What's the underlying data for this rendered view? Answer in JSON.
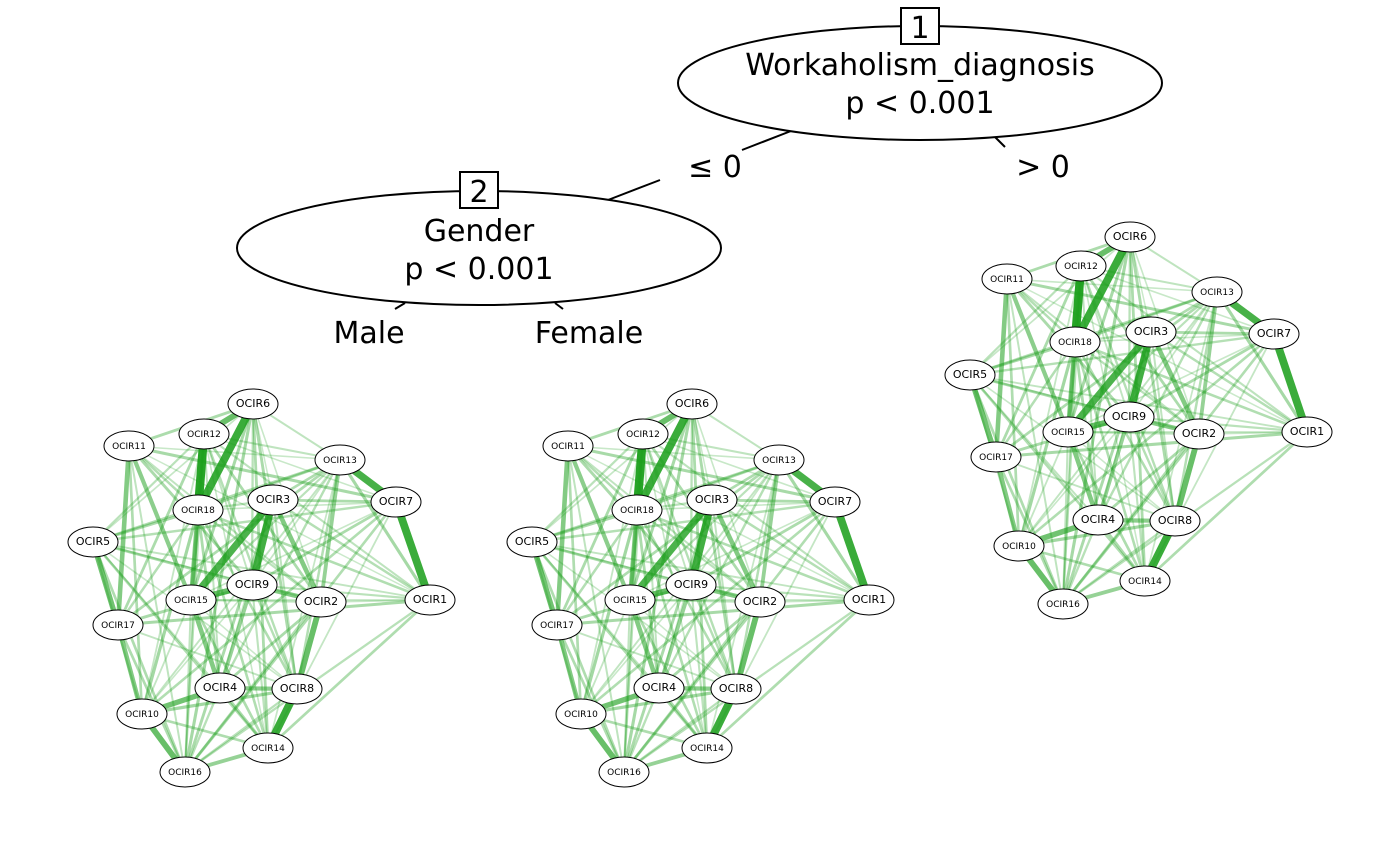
{
  "tree": {
    "inner_nodes": [
      {
        "id": "1",
        "variable": "Workaholism_diagnosis",
        "p_value": "p < 0.001"
      },
      {
        "id": "2",
        "variable": "Gender",
        "p_value": "p < 0.001"
      }
    ],
    "edges": [
      {
        "from": "1",
        "to": "2",
        "label": "≤ 0"
      },
      {
        "from": "1",
        "to": "leaf-right",
        "label": "> 0"
      },
      {
        "from": "2",
        "to": "leaf-male",
        "label": "Male"
      },
      {
        "from": "2",
        "to": "leaf-female",
        "label": "Female"
      }
    ]
  },
  "networks": {
    "nodes": [
      "OCIR1",
      "OCIR2",
      "OCIR3",
      "OCIR4",
      "OCIR5",
      "OCIR6",
      "OCIR7",
      "OCIR8",
      "OCIR9",
      "OCIR10",
      "OCIR11",
      "OCIR12",
      "OCIR13",
      "OCIR14",
      "OCIR15",
      "OCIR16",
      "OCIR17",
      "OCIR18"
    ],
    "edge_color": "#1a9e1a",
    "strong_edges": [
      {
        "pair": [
          "OCIR12",
          "OCIR18"
        ],
        "weight": 0.95
      },
      {
        "pair": [
          "OCIR6",
          "OCIR18"
        ],
        "weight": 0.85
      },
      {
        "pair": [
          "OCIR7",
          "OCIR1"
        ],
        "weight": 0.85
      },
      {
        "pair": [
          "OCIR13",
          "OCIR7"
        ],
        "weight": 0.78
      },
      {
        "pair": [
          "OCIR3",
          "OCIR9"
        ],
        "weight": 0.8
      },
      {
        "pair": [
          "OCIR3",
          "OCIR15"
        ],
        "weight": 0.75
      },
      {
        "pair": [
          "OCIR8",
          "OCIR14"
        ],
        "weight": 0.85
      },
      {
        "pair": [
          "OCIR6",
          "OCIR12"
        ],
        "weight": 0.6
      },
      {
        "pair": [
          "OCIR2",
          "OCIR8"
        ],
        "weight": 0.6
      },
      {
        "pair": [
          "OCIR15",
          "OCIR9"
        ],
        "weight": 0.6
      },
      {
        "pair": [
          "OCIR10",
          "OCIR16"
        ],
        "weight": 0.6
      },
      {
        "pair": [
          "OCIR4",
          "OCIR10"
        ],
        "weight": 0.55
      },
      {
        "pair": [
          "OCIR5",
          "OCIR17"
        ],
        "weight": 0.55
      },
      {
        "pair": [
          "OCIR11",
          "OCIR17"
        ],
        "weight": 0.45
      },
      {
        "pair": [
          "OCIR17",
          "OCIR10"
        ],
        "weight": 0.45
      },
      {
        "pair": [
          "OCIR15",
          "OCIR4"
        ],
        "weight": 0.45
      },
      {
        "pair": [
          "OCIR3",
          "OCIR2"
        ],
        "weight": 0.45
      },
      {
        "pair": [
          "OCIR9",
          "OCIR2"
        ],
        "weight": 0.45
      },
      {
        "pair": [
          "OCIR18",
          "OCIR15"
        ],
        "weight": 0.45
      },
      {
        "pair": [
          "OCIR11",
          "OCIR15"
        ],
        "weight": 0.4
      },
      {
        "pair": [
          "OCIR4",
          "OCIR8"
        ],
        "weight": 0.4
      },
      {
        "pair": [
          "OCIR13",
          "OCIR2"
        ],
        "weight": 0.35
      },
      {
        "pair": [
          "OCIR9",
          "OCIR4"
        ],
        "weight": 0.35
      },
      {
        "pair": [
          "OCIR14",
          "OCIR16"
        ],
        "weight": 0.35
      }
    ],
    "panels": [
      {
        "id": "male",
        "title": "Male"
      },
      {
        "id": "female",
        "title": "Female"
      },
      {
        "id": "right",
        "title": "> 0"
      }
    ]
  }
}
